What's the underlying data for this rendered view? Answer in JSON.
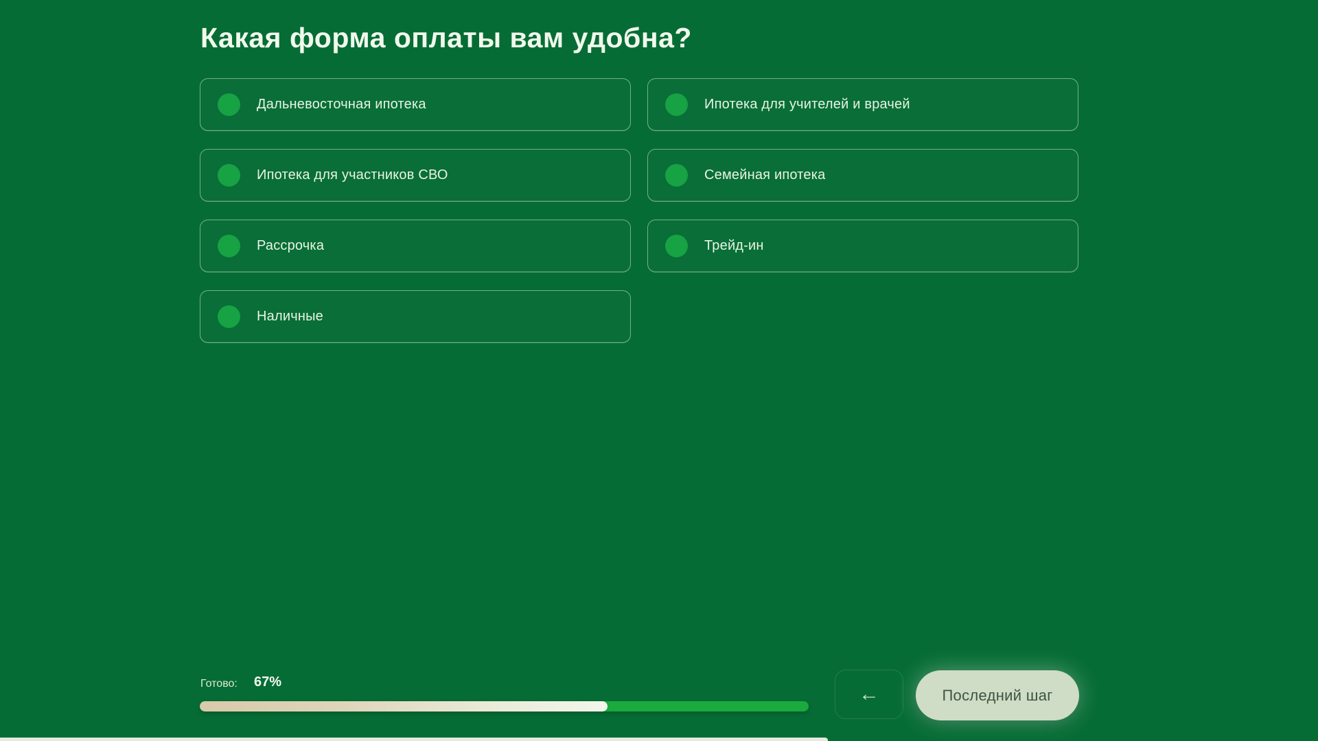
{
  "theme": {
    "background": "#066C35",
    "accent_green": "#17A244",
    "bar_remainder_green": "#1AAA3E",
    "bar_fill_tan": "#D8CAA9",
    "button_bg": "#CFDCC6",
    "button_text": "#3C5440",
    "text_light": "#E9F4E3"
  },
  "question": {
    "title": "Какая форма оплаты вам удобна?"
  },
  "options": [
    {
      "label": "Дальневосточная ипотека"
    },
    {
      "label": "Ипотека для учителей и врачей"
    },
    {
      "label": "Ипотека для участников СВО"
    },
    {
      "label": "Семейная ипотека"
    },
    {
      "label": "Рассрочка"
    },
    {
      "label": "Трейд-ин"
    },
    {
      "label": "Наличные"
    }
  ],
  "footer": {
    "progress_label": "Готово:",
    "progress_value": "67%",
    "progress_percent": 67,
    "back_arrow": "←",
    "next_button_label": "Последний шаг"
  }
}
